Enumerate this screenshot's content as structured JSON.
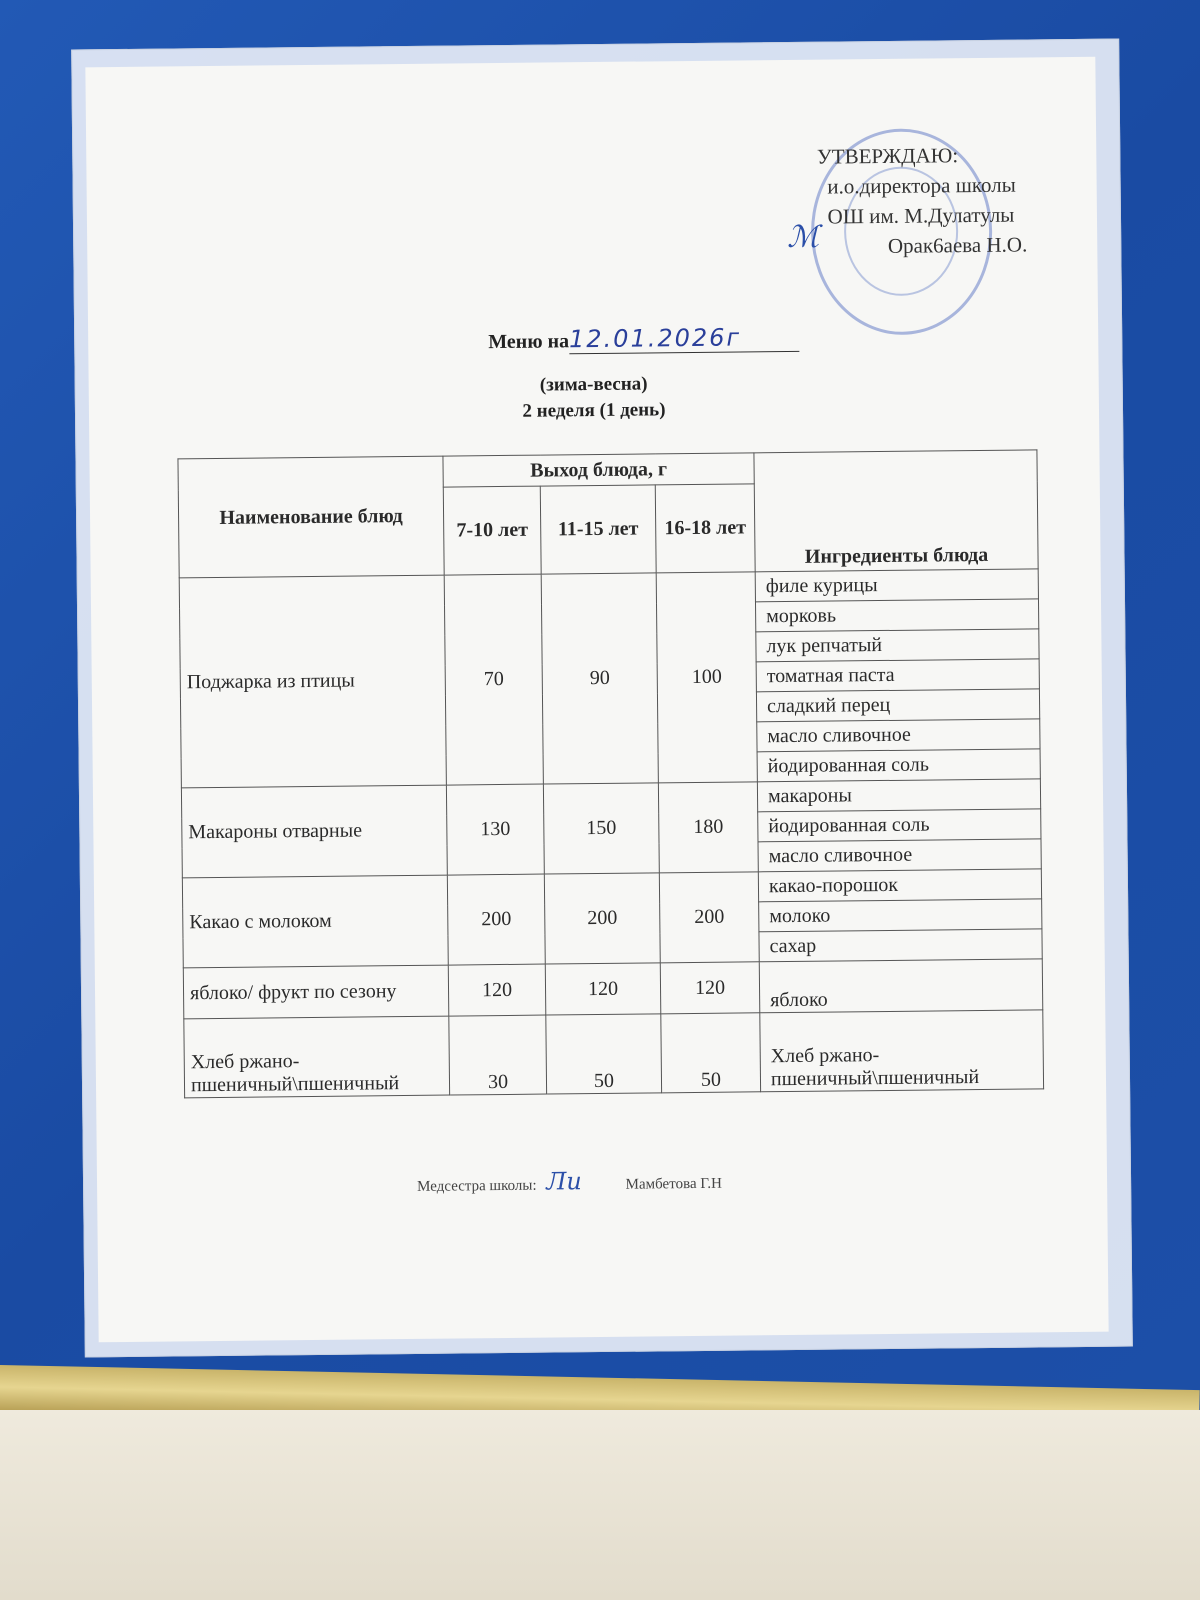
{
  "approval": {
    "heading": "УТВЕРЖДАЮ:",
    "position": "и.о.директора школы",
    "school": "ОШ им. М.Дулатулы",
    "name": "Орак6аева Н.О."
  },
  "title": {
    "label": "Меню на",
    "date_handwritten": "12.01.2026г"
  },
  "season": "(зима-весна)",
  "week_day": "2 неделя (1 день)",
  "table": {
    "headers": {
      "dish": "Наименование блюд",
      "yield": "Выход блюда, г",
      "ages": [
        "7-10 лет",
        "11-15 лет",
        "16-18 лет"
      ],
      "ingredients": "Ингредиенты блюда"
    },
    "rows": [
      {
        "dish": "Поджарка из птицы",
        "values": [
          "70",
          "90",
          "100"
        ],
        "ingredients": [
          "филе курицы",
          "морковь",
          "лук репчатый",
          "томатная паста",
          "сладкий перец",
          "масло сливочное",
          "йодированная соль"
        ]
      },
      {
        "dish": "Макароны отварные",
        "values": [
          "130",
          "150",
          "180"
        ],
        "ingredients": [
          "макароны",
          "йодированная соль",
          "масло сливочное"
        ]
      },
      {
        "dish": "Какао с молоком",
        "values": [
          "200",
          "200",
          "200"
        ],
        "ingredients": [
          "какао-порошок",
          "молоко",
          "сахар"
        ]
      },
      {
        "dish": "яблоко/ фрукт по сезону",
        "values": [
          "120",
          "120",
          "120"
        ],
        "ingredients": [
          "яблоко"
        ]
      },
      {
        "dish": "Хлеб ржано-пшеничный\\пшеничный",
        "values": [
          "30",
          "50",
          "50"
        ],
        "ingredients": [
          "Хлеб ржано-пшеничный\\пшеничный"
        ]
      }
    ]
  },
  "footer": {
    "label": "Медсестра школы:",
    "name": "Мамбетова Г.Н"
  },
  "colors": {
    "board": "#1d4fa6",
    "ink_handwriting": "#2a3f9a",
    "stamp": "#4664be"
  }
}
